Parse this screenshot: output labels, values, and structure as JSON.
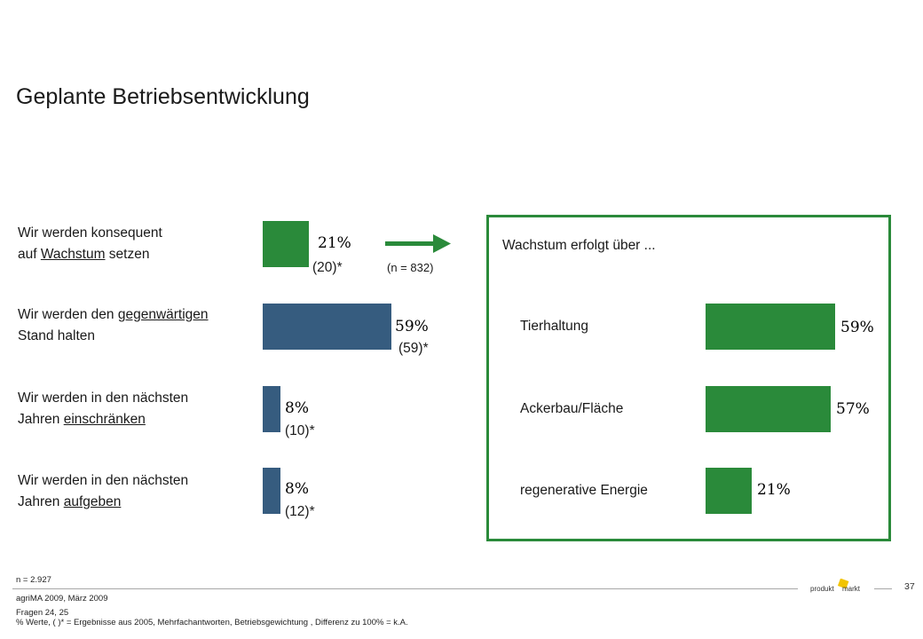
{
  "title": "Geplante Betriebsentwicklung",
  "colors": {
    "blue": "#365c7f",
    "green": "#2a8a3a",
    "arrow": "#2a8a3a"
  },
  "left": {
    "rows": [
      {
        "line1_pre": "Wir werden konsequent",
        "line2_pre": "auf ",
        "line2_u": "Wachstum",
        "line2_post": " setzen",
        "value_label": "21%",
        "prev_label": "(20)*",
        "color": "#2a8a3a"
      },
      {
        "line1_pre": "Wir werden den ",
        "line1_u": "gegenwärtigen",
        "line2_pre": "Stand halten",
        "value_label": "59%",
        "prev_label": "(59)*",
        "color": "#365c7f"
      },
      {
        "line1_pre": "Wir werden in den nächsten",
        "line2_pre": "Jahren ",
        "line2_u": "einschränken",
        "line2_post": "",
        "value_label": "8%",
        "prev_label": "(10)*",
        "color": "#365c7f"
      },
      {
        "line1_pre": "Wir werden in den nächsten",
        "line2_pre": "Jahren ",
        "line2_u": "aufgeben",
        "line2_post": "",
        "value_label": "8%",
        "prev_label": "(12)*",
        "color": "#365c7f"
      }
    ],
    "n_note": "(n = 832)"
  },
  "right": {
    "title": "Wachstum erfolgt über ...",
    "rows": [
      {
        "label": "Tierhaltung",
        "value_label": "59%"
      },
      {
        "label": "Ackerbau/Fläche",
        "value_label": "57%"
      },
      {
        "label": "regenerative Energie",
        "value_label": "21%"
      }
    ]
  },
  "chart_data": [
    {
      "type": "bar",
      "orientation": "horizontal",
      "categories": [
        "Wir werden konsequent auf Wachstum setzen",
        "Wir werden den gegenwärtigen Stand halten",
        "Wir werden in den nächsten Jahren einschränken",
        "Wir werden in den nächsten Jahren aufgeben"
      ],
      "values": [
        21,
        59,
        8,
        8
      ],
      "previous_values": [
        20,
        59,
        10,
        12
      ],
      "unit": "%"
    },
    {
      "type": "bar",
      "orientation": "horizontal",
      "title": "Wachstum erfolgt über ...",
      "categories": [
        "Tierhaltung",
        "Ackerbau/Fläche",
        "regenerative Energie"
      ],
      "values": [
        59,
        57,
        21
      ],
      "unit": "%"
    }
  ],
  "footer": {
    "n_total": "n = 2.927",
    "source": "agriMA 2009, März 2009",
    "questions": "Fragen 24, 25",
    "note": "% Werte, ( )* = Ergebnisse aus 2005, Mehrfachantworten, Betriebsgewichtung , Differenz zu 100% = k.A.",
    "page": "37",
    "logo_text": "produkt markt"
  }
}
